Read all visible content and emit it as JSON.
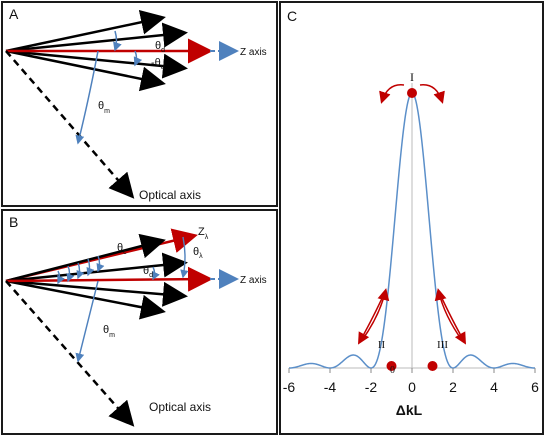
{
  "panels": {
    "a": {
      "letter": "A",
      "z_axis": "Z axis",
      "optical_axis": "Optical axis",
      "theta": "θ",
      "sub_d": "d",
      "sub_m": "m",
      "neg_theta": "-θ"
    },
    "b": {
      "letter": "B",
      "z_axis": "Z axis",
      "optical_axis": "Optical axis",
      "z_lambda": "Z",
      "sub_lambda": "λ",
      "theta": "θ",
      "sub_c": "c",
      "sub_d": "d",
      "sub_m": "m"
    },
    "c": {
      "letter": "C",
      "xlabel": "ΔkL",
      "markers": {
        "peak": "I",
        "left": "II",
        "right": "III",
        "left_zero": "0"
      }
    }
  },
  "colors": {
    "red": "#c00000",
    "blue": "#4f81bd",
    "black": "#000000",
    "curve": "#5b8fc9",
    "dot": "#c00000"
  },
  "chart_data": {
    "type": "line",
    "title": "",
    "xlabel": "ΔkL",
    "ylabel": "",
    "xlim": [
      -6,
      6
    ],
    "xticks": [
      -6,
      -4,
      -2,
      0,
      2,
      4,
      6
    ],
    "ylim": [
      0,
      1
    ],
    "grid": "vertical line at x=0",
    "series": [
      {
        "function": "sinc^2(x)",
        "x": [
          -6,
          -5,
          -4.5,
          -4,
          -3.5,
          -3,
          -2.5,
          -2,
          -1.6,
          -1.2,
          -1,
          -0.8,
          -0.6,
          -0.4,
          -0.2,
          0,
          0.2,
          0.4,
          0.6,
          0.8,
          1,
          1.2,
          1.6,
          2,
          2.5,
          3,
          3.5,
          4,
          4.5,
          5,
          6
        ],
        "y": [
          0.0,
          0.04,
          0.0,
          0.02,
          0.04,
          0.0,
          0.06,
          0.0,
          0.03,
          0.12,
          0.25,
          0.42,
          0.6,
          0.77,
          0.94,
          1.0,
          0.94,
          0.77,
          0.6,
          0.42,
          0.25,
          0.12,
          0.03,
          0.0,
          0.06,
          0.0,
          0.04,
          0.02,
          0.0,
          0.04,
          0.0
        ]
      }
    ],
    "points": [
      {
        "label": "I",
        "x": 0,
        "y": 1.0
      },
      {
        "label": "II",
        "x": -1.0,
        "y": 0.0
      },
      {
        "label": "III",
        "x": 1.0,
        "y": 0.0
      }
    ]
  }
}
